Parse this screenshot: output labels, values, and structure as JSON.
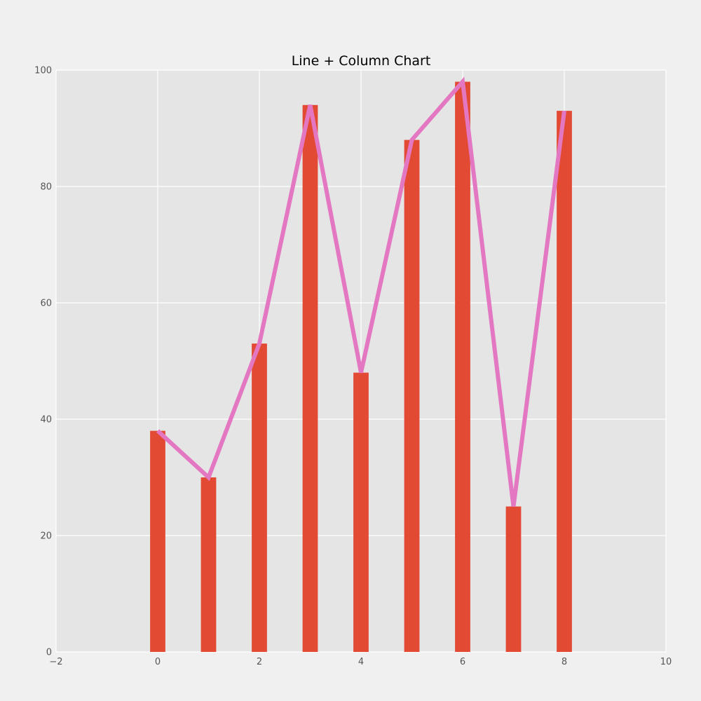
{
  "chart_data": {
    "type": "bar",
    "title": "Line + Column Chart",
    "xlabel": "",
    "ylabel": "",
    "x": [
      0,
      1,
      2,
      3,
      4,
      5,
      6,
      7,
      8
    ],
    "series": [
      {
        "type": "bar",
        "values": [
          38,
          30,
          53,
          94,
          48,
          88,
          98,
          25,
          93
        ],
        "color": "#e24a33"
      },
      {
        "type": "line",
        "values": [
          38,
          30,
          53,
          94,
          48,
          88,
          98,
          25,
          93
        ],
        "color": "#e377c2"
      }
    ],
    "xlim": [
      -2,
      10
    ],
    "ylim": [
      0,
      100
    ],
    "xticks": [
      -2,
      0,
      2,
      4,
      6,
      8,
      10
    ],
    "xtick_labels": [
      "−2",
      "0",
      "2",
      "4",
      "6",
      "8",
      "10"
    ],
    "yticks": [
      0,
      20,
      40,
      60,
      80,
      100
    ],
    "ytick_labels": [
      "0",
      "20",
      "40",
      "60",
      "80",
      "100"
    ],
    "grid": true,
    "legend": "none",
    "colors": {
      "figure_bg": "#f0f0f0",
      "plot_bg": "#e5e5e5",
      "grid": "#ffffff"
    }
  }
}
